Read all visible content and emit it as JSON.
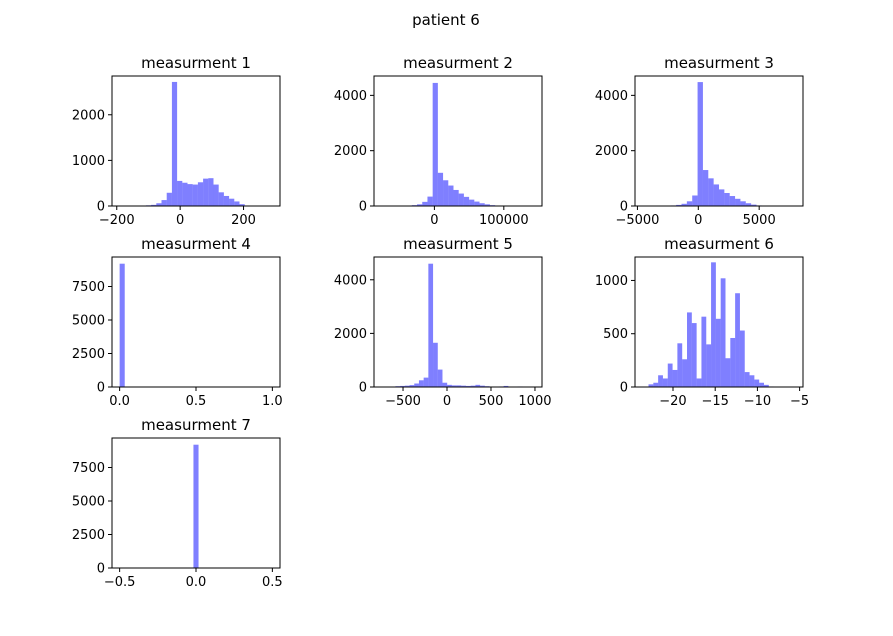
{
  "figure": {
    "title": "patient 6"
  },
  "colors": {
    "bar": "#8080ff",
    "axes": "#000000"
  },
  "chart_data": [
    {
      "type": "bar",
      "title": "measurment 1",
      "xlim": [
        -215,
        315
      ],
      "ylim": [
        0,
        2850
      ],
      "xticks": [
        -200,
        0,
        200
      ],
      "xtick_labels": [
        "−200",
        "0",
        "200"
      ],
      "yticks": [
        0,
        1000,
        2000
      ],
      "ytick_labels": [
        "0",
        "1000",
        "2000"
      ],
      "bins": {
        "start": -190,
        "width": 16.4
      },
      "values": [
        2,
        3,
        5,
        7,
        10,
        15,
        25,
        60,
        130,
        290,
        2720,
        550,
        510,
        480,
        470,
        520,
        600,
        610,
        470,
        300,
        220,
        160,
        100,
        40
      ]
    },
    {
      "type": "bar",
      "title": "measurment 2",
      "xlim": [
        -87000,
        155000
      ],
      "ylim": [
        0,
        4700
      ],
      "xticks": [
        0,
        100000
      ],
      "xtick_labels": [
        "0",
        "100000"
      ],
      "yticks": [
        0,
        2000,
        4000
      ],
      "ytick_labels": [
        "0",
        "2000",
        "4000"
      ],
      "bins": {
        "start": -40000,
        "width": 7500
      },
      "values": [
        10,
        30,
        60,
        150,
        340,
        4450,
        1200,
        930,
        740,
        580,
        450,
        330,
        230,
        160,
        100,
        60,
        30,
        10,
        5
      ]
    },
    {
      "type": "bar",
      "title": "measurment 3",
      "xlim": [
        -5200,
        8600
      ],
      "ylim": [
        0,
        4700
      ],
      "xticks": [
        -5000,
        0,
        5000
      ],
      "xtick_labels": [
        "−5000",
        "0",
        "5000"
      ],
      "yticks": [
        0,
        2000,
        4000
      ],
      "ytick_labels": [
        "0",
        "2000",
        "4000"
      ],
      "bins": {
        "start": -2700,
        "width": 440
      },
      "values": [
        10,
        20,
        40,
        80,
        170,
        380,
        4480,
        1300,
        1000,
        780,
        600,
        470,
        360,
        260,
        170,
        100,
        50,
        20,
        5
      ]
    },
    {
      "type": "bar",
      "title": "measurment 4",
      "xlim": [
        -0.05,
        1.05
      ],
      "ylim": [
        0,
        9700
      ],
      "xticks": [
        0.0,
        0.5,
        1.0
      ],
      "xtick_labels": [
        "0.0",
        "0.5",
        "1.0"
      ],
      "yticks": [
        0,
        2500,
        5000,
        7500
      ],
      "ytick_labels": [
        "0",
        "2500",
        "5000",
        "7500"
      ],
      "bins": {
        "start": 0.0,
        "width": 0.0333
      },
      "values": [
        9200,
        0,
        0,
        0,
        0,
        0,
        0,
        0,
        0,
        0,
        0,
        0,
        0,
        0,
        0,
        0,
        0,
        0,
        0,
        0,
        0,
        0,
        0,
        0,
        0,
        0,
        0,
        0,
        0,
        1
      ]
    },
    {
      "type": "bar",
      "title": "measurment 5",
      "xlim": [
        -830,
        1080
      ],
      "ylim": [
        0,
        4850
      ],
      "xticks": [
        -500,
        0,
        500,
        1000
      ],
      "xtick_labels": [
        "−500",
        "0",
        "500",
        "1000"
      ],
      "yticks": [
        0,
        2000,
        4000
      ],
      "ytick_labels": [
        "0",
        "2000",
        "4000"
      ],
      "bins": {
        "start": -640,
        "width": 53.5
      },
      "values": [
        15,
        30,
        40,
        50,
        70,
        130,
        250,
        350,
        4600,
        1650,
        650,
        160,
        80,
        60,
        60,
        50,
        40,
        50,
        80,
        50,
        30,
        10,
        10,
        20,
        40,
        10,
        5,
        20,
        5,
        5,
        5
      ]
    },
    {
      "type": "bar",
      "title": "measurment 6",
      "xlim": [
        -24.5,
        -4.6
      ],
      "ylim": [
        0,
        1220
      ],
      "xticks": [
        -20,
        -15,
        -10,
        -5
      ],
      "xtick_labels": [
        "−20",
        "−15",
        "−10",
        "−5"
      ],
      "yticks": [
        0,
        500,
        1000
      ],
      "ytick_labels": [
        "0",
        "500",
        "1000"
      ],
      "bins": {
        "start": -22.9,
        "width": 0.57
      },
      "values": [
        25,
        40,
        110,
        80,
        220,
        160,
        410,
        260,
        700,
        600,
        80,
        660,
        400,
        1170,
        640,
        1020,
        270,
        460,
        880,
        530,
        140,
        110,
        70,
        40,
        20,
        5
      ]
    },
    {
      "type": "bar",
      "title": "measurment 7",
      "xlim": [
        -0.55,
        0.55
      ],
      "ylim": [
        0,
        9700
      ],
      "xticks": [
        -0.5,
        0.0,
        0.5
      ],
      "xtick_labels": [
        "−0.5",
        "0.0",
        "0.5"
      ],
      "yticks": [
        0,
        2500,
        5000,
        7500
      ],
      "ytick_labels": [
        "0",
        "2500",
        "5000",
        "7500"
      ],
      "bins": {
        "start": -0.0167,
        "width": 0.0333
      },
      "values": [
        9200
      ]
    }
  ]
}
